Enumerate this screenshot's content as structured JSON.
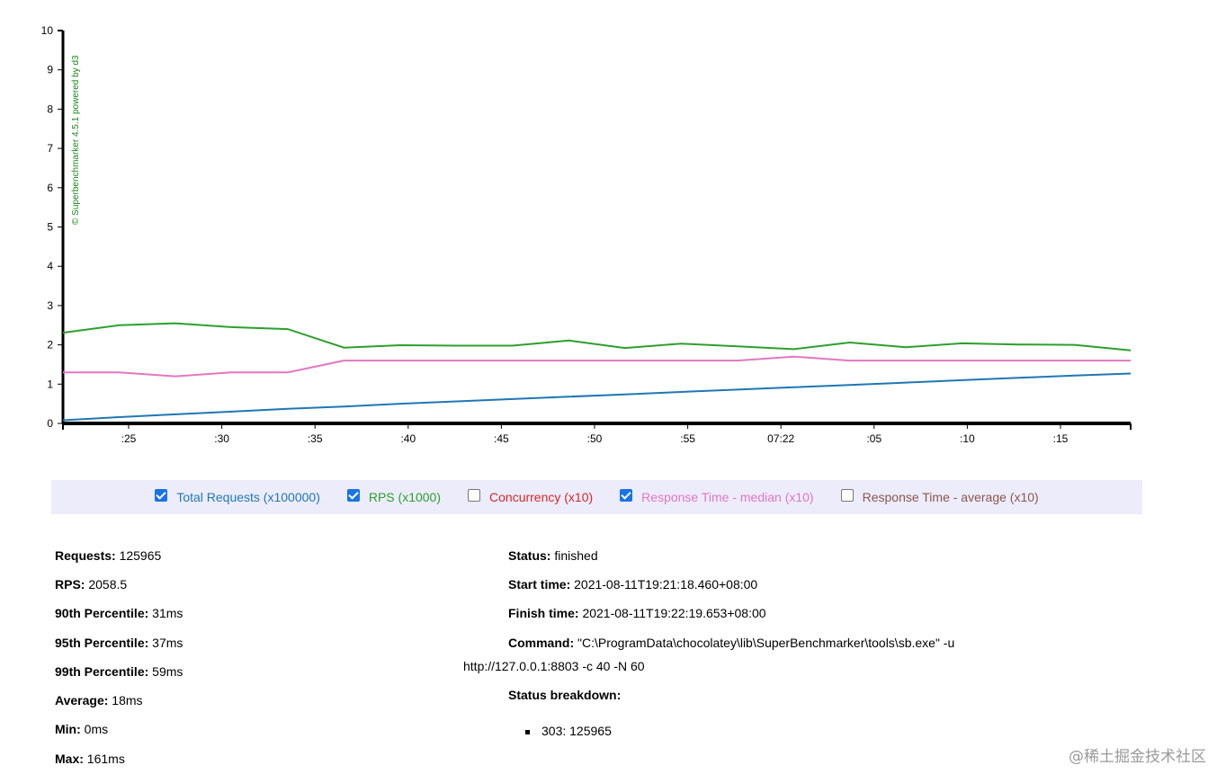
{
  "chart_data": {
    "type": "line",
    "ylim": [
      0,
      10
    ],
    "yticks": [
      "0",
      "1",
      "2",
      "3",
      "4",
      "5",
      "6",
      "7",
      "8",
      "9",
      "10"
    ],
    "xticks": [
      ":25",
      ":30",
      ":35",
      ":40",
      ":45",
      ":50",
      ":55",
      "07:22",
      ":05",
      ":10",
      ":15"
    ],
    "credit": "© Superbenchmarker 4.5.1 powered by d3",
    "grid": false,
    "series": [
      {
        "name": "Total Requests (x100000)",
        "color": "#1f77b4",
        "visible": true,
        "values": [
          0.08,
          0.16,
          0.23,
          0.3,
          0.37,
          0.43,
          0.5,
          0.56,
          0.62,
          0.68,
          0.74,
          0.8,
          0.86,
          0.92,
          0.98,
          1.04,
          1.1,
          1.16,
          1.22,
          1.27
        ]
      },
      {
        "name": "RPS (x1000)",
        "color": "#2ca02c",
        "visible": true,
        "values": [
          2.31,
          2.5,
          2.55,
          2.45,
          2.4,
          1.93,
          1.99,
          1.98,
          1.98,
          2.11,
          1.92,
          2.03,
          1.96,
          1.89,
          2.06,
          1.94,
          2.04,
          2.01,
          2.0,
          1.86
        ]
      },
      {
        "name": "Concurrency (x10)",
        "color": "#d62728",
        "visible": false,
        "values": []
      },
      {
        "name": "Response Time - median (x10)",
        "color": "#e377c2",
        "visible": true,
        "values": [
          1.3,
          1.3,
          1.2,
          1.3,
          1.3,
          1.6,
          1.6,
          1.6,
          1.6,
          1.6,
          1.6,
          1.6,
          1.6,
          1.7,
          1.6,
          1.6,
          1.6,
          1.6,
          1.6,
          1.6
        ]
      },
      {
        "name": "Response Time - average (x10)",
        "color": "#8c564b",
        "visible": false,
        "values": []
      }
    ]
  },
  "stats_left": [
    {
      "label": "Requests:",
      "value": "125965"
    },
    {
      "label": "RPS:",
      "value": "2058.5"
    },
    {
      "label": "90th Percentile:",
      "value": "31ms"
    },
    {
      "label": "95th Percentile:",
      "value": "37ms"
    },
    {
      "label": "99th Percentile:",
      "value": "59ms"
    },
    {
      "label": "Average:",
      "value": "18ms"
    },
    {
      "label": "Min:",
      "value": "0ms"
    },
    {
      "label": "Max:",
      "value": "161ms"
    }
  ],
  "stats_right": {
    "status_label": "Status:",
    "status_value": "finished",
    "start_label": "Start time:",
    "start_value": "2021-08-11T19:21:18.460+08:00",
    "finish_label": "Finish time:",
    "finish_value": "2021-08-11T19:22:19.653+08:00",
    "command_label": "Command:",
    "command_line1": "\"C:\\ProgramData\\chocolatey\\lib\\SuperBenchmarker\\tools\\sb.exe\" -u",
    "command_line2": "http://127.0.0.1:8803 -c 40 -N 60",
    "breakdown_label": "Status breakdown:",
    "breakdown_items": [
      "303: 125965"
    ]
  },
  "watermark": "@稀土掘金技术社区"
}
